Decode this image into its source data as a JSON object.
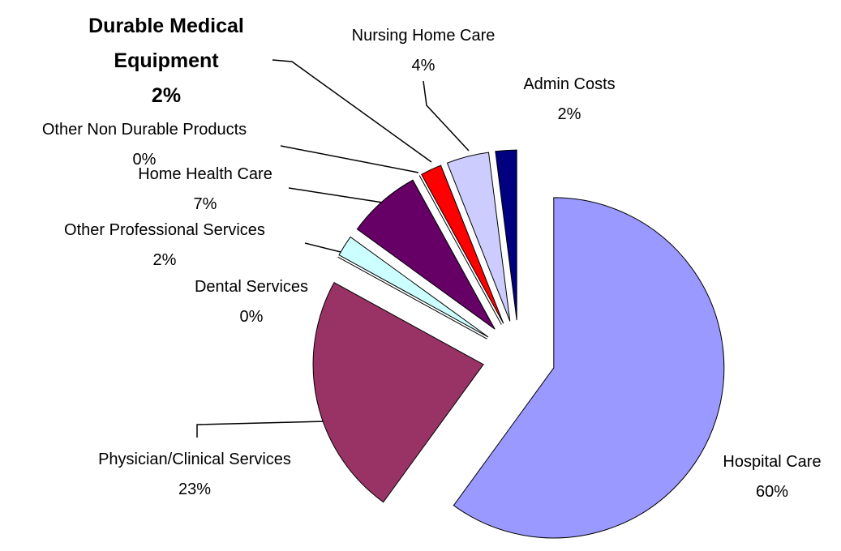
{
  "chart_data": {
    "type": "pie",
    "categories": [
      "Hospital Care",
      "Physician/Clinical Services",
      "Dental Services",
      "Other Professional Services",
      "Home Health Care",
      "Other Non Durable Products",
      "Durable Medical Equipment",
      "Nursing Home Care",
      "Admin Costs"
    ],
    "values": [
      60,
      23,
      0,
      2,
      7,
      0,
      2,
      4,
      2
    ],
    "value_labels": [
      "60%",
      "23%",
      "0%",
      "2%",
      "7%",
      "0%",
      "2%",
      "4%",
      "2%"
    ],
    "colors": [
      "#9999ff",
      "#993366",
      "#ffffcc",
      "#ccffff",
      "#660066",
      "#ff8080",
      "#ff0000",
      "#ccccff",
      "#000080"
    ]
  }
}
